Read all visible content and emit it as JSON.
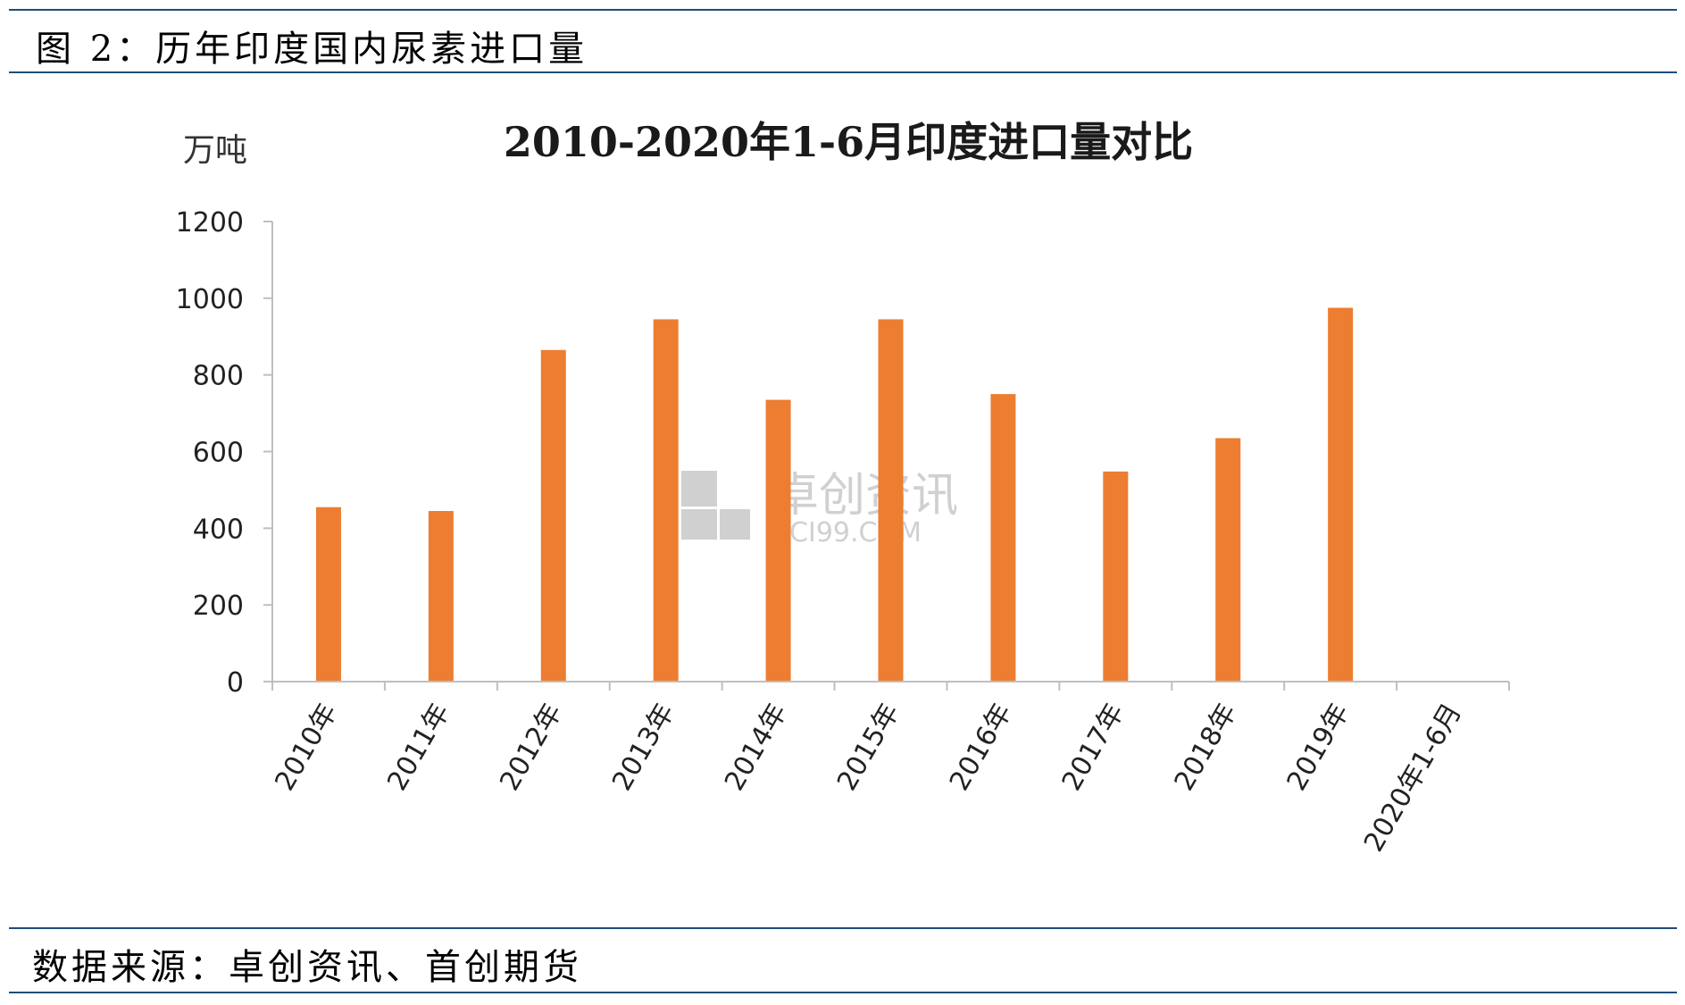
{
  "caption": {
    "title": "图 2：历年印度国内尿素进口量",
    "source": "数据来源：卓创资讯、首创期货"
  },
  "colors": {
    "bar": "#ed7d31",
    "rule": "#1f4e79",
    "axis": "#bfbfbf",
    "watermark": "#d0d0d0"
  },
  "watermark": {
    "main": "卓创资讯",
    "sub": "SCI99.COM"
  },
  "chart_data": {
    "type": "bar",
    "title": "2010-2020年1-6月印度进口量对比",
    "ylabel": "万吨",
    "xlabel": "",
    "ylim": [
      0,
      1200
    ],
    "yticks": [
      0,
      200,
      400,
      600,
      800,
      1000,
      1200
    ],
    "categories": [
      "2010年",
      "2011年",
      "2012年",
      "2013年",
      "2014年",
      "2015年",
      "2016年",
      "2017年",
      "2018年",
      "2019年",
      "2020年1-6月"
    ],
    "values": [
      455,
      445,
      865,
      945,
      735,
      945,
      750,
      548,
      635,
      975,
      0
    ],
    "grid": false,
    "legend": "none"
  }
}
